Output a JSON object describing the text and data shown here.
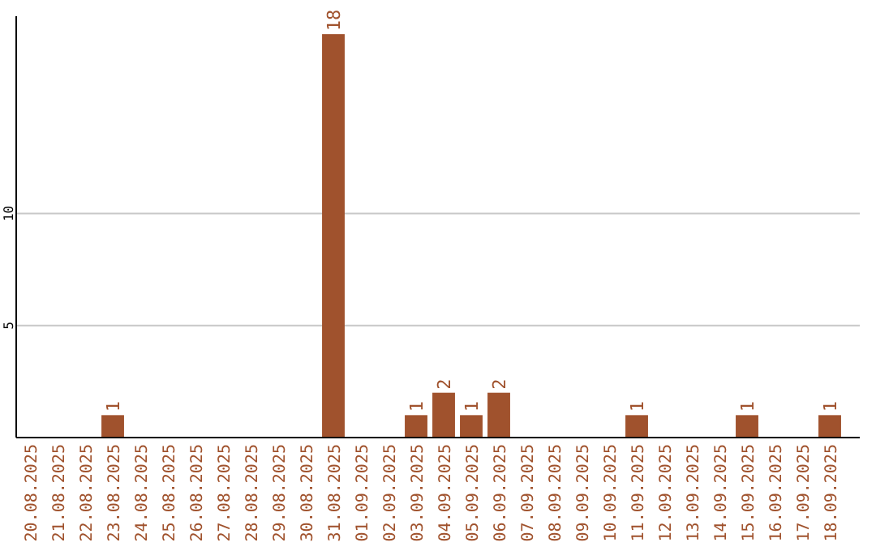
{
  "chart_data": {
    "type": "bar",
    "categories": [
      "20.08.2025",
      "21.08.2025",
      "22.08.2025",
      "23.08.2025",
      "24.08.2025",
      "25.08.2025",
      "26.08.2025",
      "27.08.2025",
      "28.08.2025",
      "29.08.2025",
      "30.08.2025",
      "31.08.2025",
      "01.09.2025",
      "02.09.2025",
      "03.09.2025",
      "04.09.2025",
      "05.09.2025",
      "06.09.2025",
      "07.09.2025",
      "08.09.2025",
      "09.09.2025",
      "10.09.2025",
      "11.09.2025",
      "12.09.2025",
      "13.09.2025",
      "14.09.2025",
      "15.09.2025",
      "16.09.2025",
      "17.09.2025",
      "18.09.2025"
    ],
    "values": [
      0,
      0,
      0,
      1,
      0,
      0,
      0,
      0,
      0,
      0,
      0,
      18,
      0,
      0,
      1,
      2,
      1,
      2,
      0,
      0,
      0,
      0,
      1,
      0,
      0,
      0,
      1,
      0,
      0,
      1
    ],
    "value_labels": [
      null,
      null,
      null,
      "1",
      null,
      null,
      null,
      null,
      null,
      null,
      null,
      "18",
      null,
      null,
      "1",
      "2",
      "1",
      "2",
      null,
      null,
      null,
      null,
      "1",
      null,
      null,
      null,
      "1",
      null,
      null,
      "1"
    ],
    "color": "#a0522d",
    "ylim": [
      0,
      18.8
    ],
    "yticks": [
      5,
      10
    ],
    "grid": "y"
  }
}
